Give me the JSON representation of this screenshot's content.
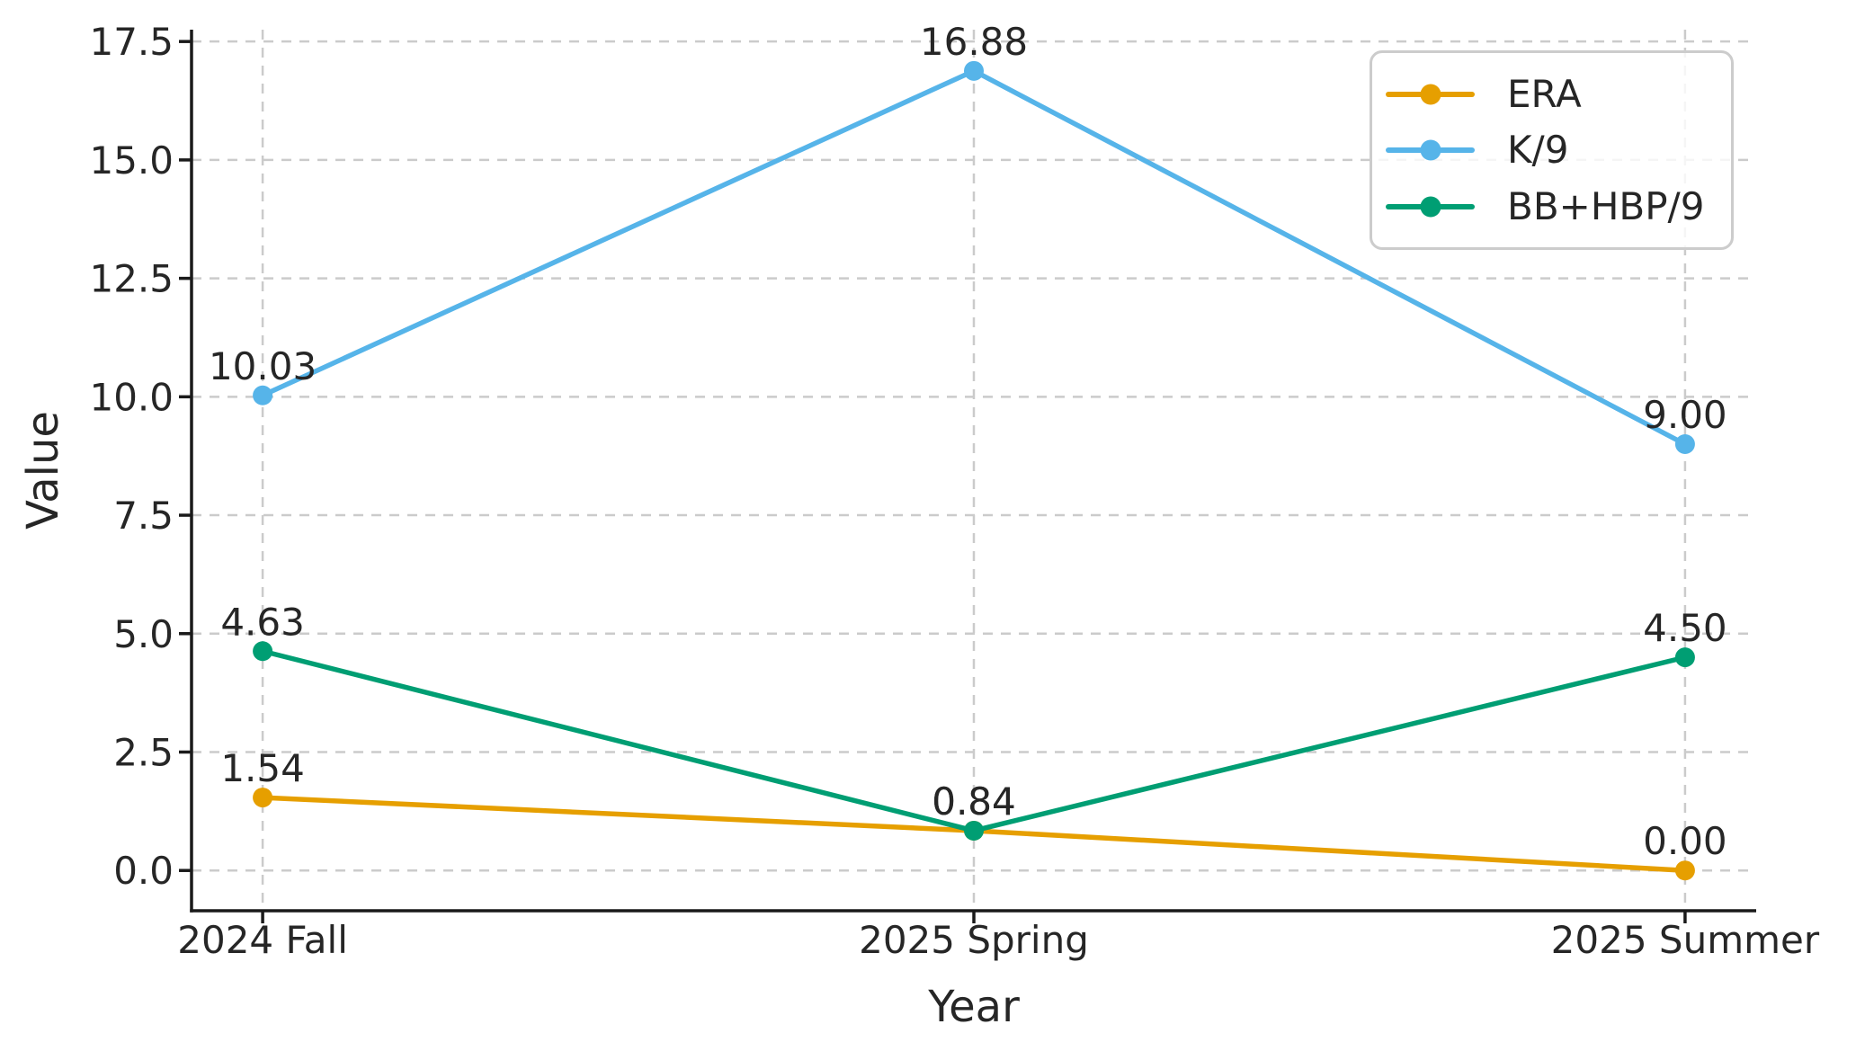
{
  "figure": {
    "background": "#ffffff",
    "text_color": "#262626",
    "grid_color": "#cbcbcb",
    "spine_color": "#1a1a1a"
  },
  "chart_data": {
    "type": "line",
    "title": "",
    "xlabel": "Year",
    "ylabel": "Value",
    "categories": [
      "2024 Fall",
      "2025 Spring",
      "2025 Summer"
    ],
    "series": [
      {
        "name": "ERA",
        "color": "#E69F00",
        "values": [
          1.54,
          0.84,
          0.0
        ],
        "labels": [
          "1.54",
          "0.84",
          "0.00"
        ]
      },
      {
        "name": "K/9",
        "color": "#56B4E9",
        "values": [
          10.03,
          16.88,
          9.0
        ],
        "labels": [
          "10.03",
          "16.88",
          "9.00"
        ]
      },
      {
        "name": "BB+HBP/9",
        "color": "#009E73",
        "values": [
          4.63,
          0.84,
          4.5
        ],
        "labels": [
          "4.63",
          "0.84",
          "4.50"
        ]
      }
    ],
    "yticks": [
      0.0,
      2.5,
      5.0,
      7.5,
      10.0,
      12.5,
      15.0,
      17.5
    ],
    "ytick_labels": [
      "0.0",
      "2.5",
      "5.0",
      "7.5",
      "10.0",
      "12.5",
      "15.0",
      "17.5"
    ],
    "ylim": [
      -0.85,
      17.75
    ],
    "xlim": [
      -0.1,
      2.1
    ],
    "grid": "dashed",
    "marker": "circle",
    "legend": {
      "position": "upper right",
      "entries": [
        "ERA",
        "K/9",
        "BB+HBP/9"
      ]
    }
  }
}
